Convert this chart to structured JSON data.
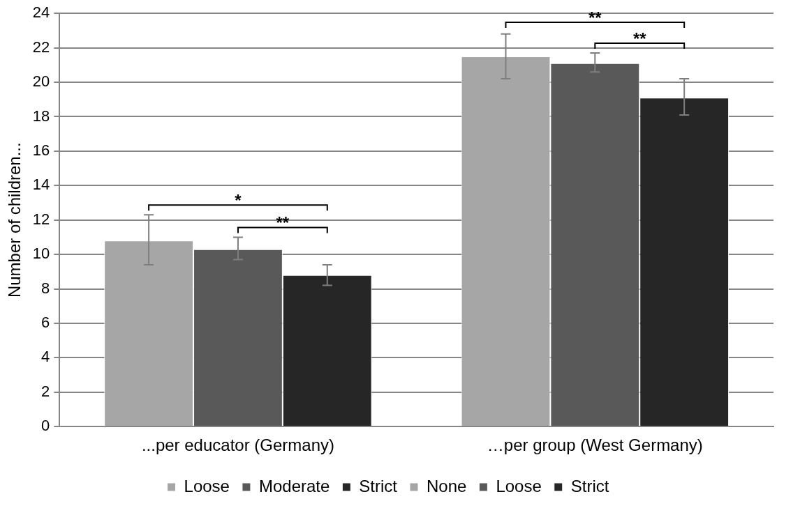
{
  "chart_data": {
    "type": "bar",
    "ylabel": "Number of children...",
    "categories": [
      "...per educator (Germany)",
      "…per group (West Germany)"
    ],
    "series": [
      {
        "name": "Loose",
        "color": "#a6a6a6",
        "values": [
          10.8,
          null
        ],
        "errors": [
          [
            9.4,
            12.3
          ],
          null
        ]
      },
      {
        "name": "Moderate",
        "color": "#595959",
        "values": [
          10.3,
          null
        ],
        "errors": [
          [
            9.7,
            11.0
          ],
          null
        ]
      },
      {
        "name": "Strict",
        "color": "#262626",
        "values": [
          8.8,
          null
        ],
        "errors": [
          [
            8.2,
            9.4
          ],
          null
        ]
      },
      {
        "name": "None",
        "color": "#a6a6a6",
        "values": [
          null,
          21.5
        ],
        "errors": [
          null,
          [
            20.2,
            22.8
          ]
        ]
      },
      {
        "name": "Loose",
        "color": "#595959",
        "values": [
          null,
          21.1
        ],
        "errors": [
          null,
          [
            20.6,
            21.7
          ]
        ]
      },
      {
        "name": "Strict",
        "color": "#262626",
        "values": [
          null,
          19.1
        ],
        "errors": [
          null,
          [
            18.1,
            20.2
          ]
        ]
      }
    ],
    "ylim": [
      0,
      24
    ],
    "yticks": [
      0,
      2,
      4,
      6,
      8,
      10,
      12,
      14,
      16,
      18,
      20,
      22,
      24
    ],
    "grid": "y",
    "legend": "bottom",
    "annotations": [
      "*",
      "**",
      "**",
      "**"
    ]
  }
}
